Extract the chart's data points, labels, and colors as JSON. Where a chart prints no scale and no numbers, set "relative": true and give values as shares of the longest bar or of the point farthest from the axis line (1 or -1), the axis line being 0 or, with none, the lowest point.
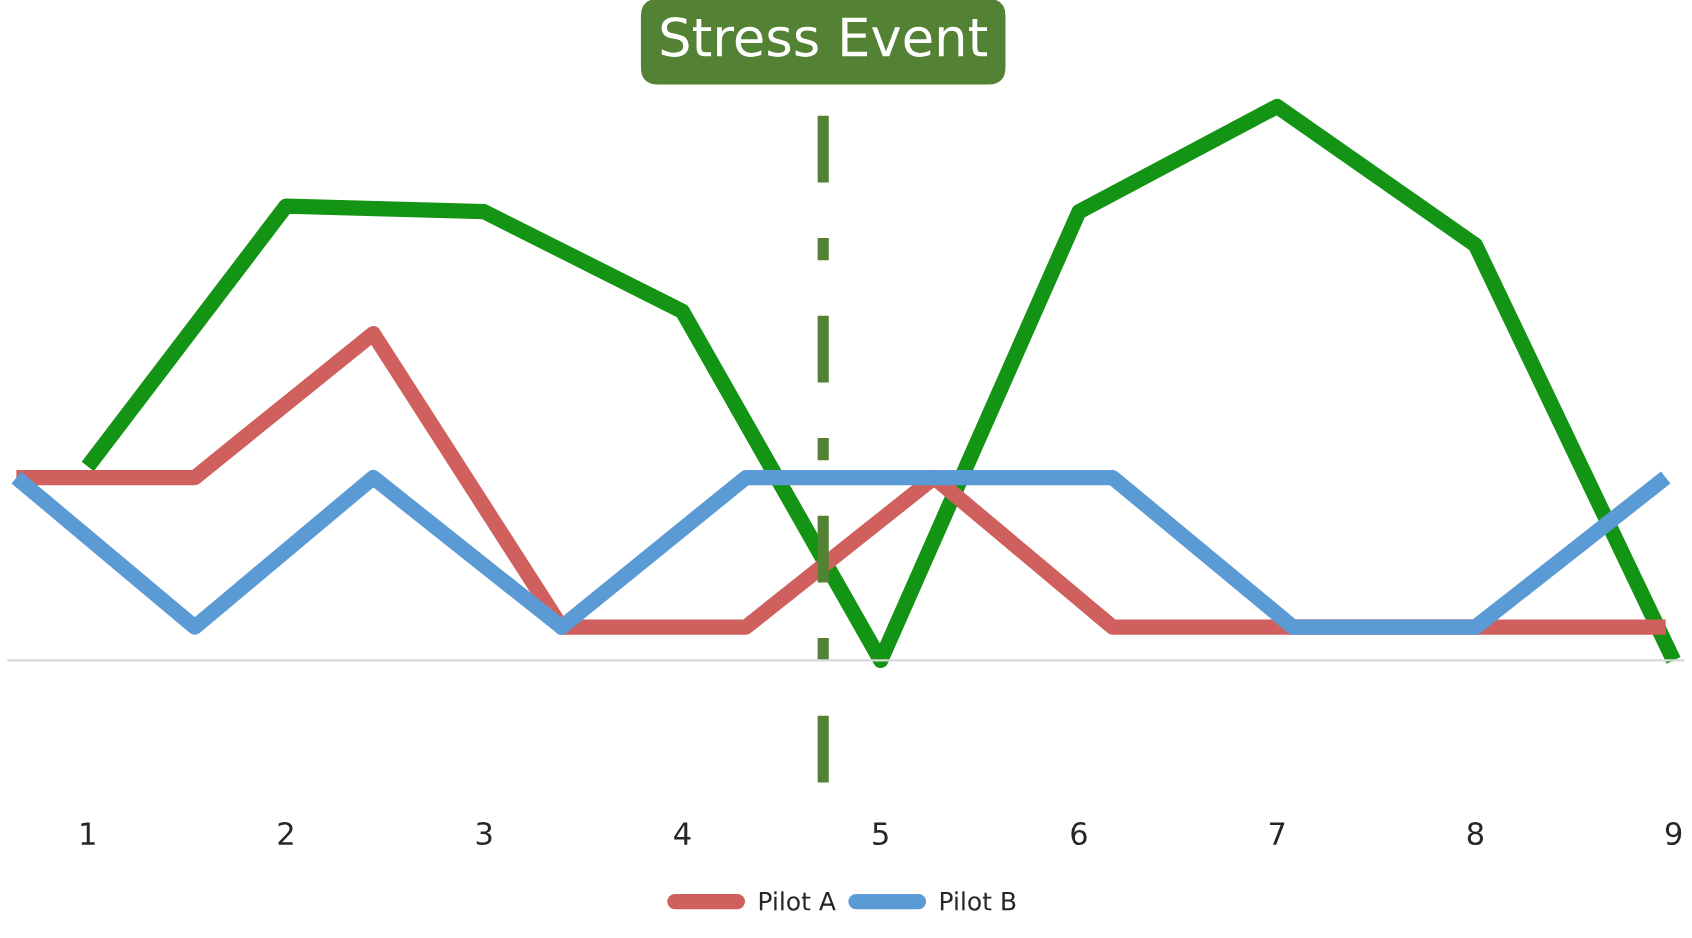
{
  "chart_data": {
    "type": "line",
    "relative": true,
    "xlim": [
      0.6,
      9.05
    ],
    "xticks": [
      1,
      2,
      3,
      4,
      5,
      6,
      7,
      8,
      9
    ],
    "series": [
      {
        "color": "#149414",
        "x": [
          1,
          2,
          3,
          4,
          5,
          6,
          7,
          8,
          9
        ],
        "values": [
          0.35,
          0.82,
          0.81,
          0.63,
          0,
          0.81,
          1,
          0.75,
          0
        ]
      },
      {
        "name": "Pilot A",
        "color": "#d0605e",
        "x": [
          0.64,
          1.54,
          2.44,
          3.39,
          4.32,
          5.27,
          6.17,
          7.08,
          8.0,
          8.96
        ],
        "values": [
          0.33,
          0.33,
          0.59,
          0.06,
          0.06,
          0.33,
          0.06,
          0.06,
          0.06,
          0.06
        ]
      },
      {
        "name": "Pilot B",
        "color": "#5b9bd5",
        "x": [
          0.64,
          1.54,
          2.44,
          3.39,
          4.32,
          5.27,
          6.17,
          7.08,
          8.0,
          8.96
        ],
        "values": [
          0.33,
          0.06,
          0.33,
          0.06,
          0.33,
          0.33,
          0.33,
          0.06,
          0.06,
          0.33
        ]
      }
    ],
    "ref_lines": [
      {
        "axis": "x",
        "value": 4.71,
        "label": "Stress Event",
        "color": "#548235",
        "line_style": "dashdot"
      }
    ],
    "legend": "bottom",
    "grid": false
  }
}
